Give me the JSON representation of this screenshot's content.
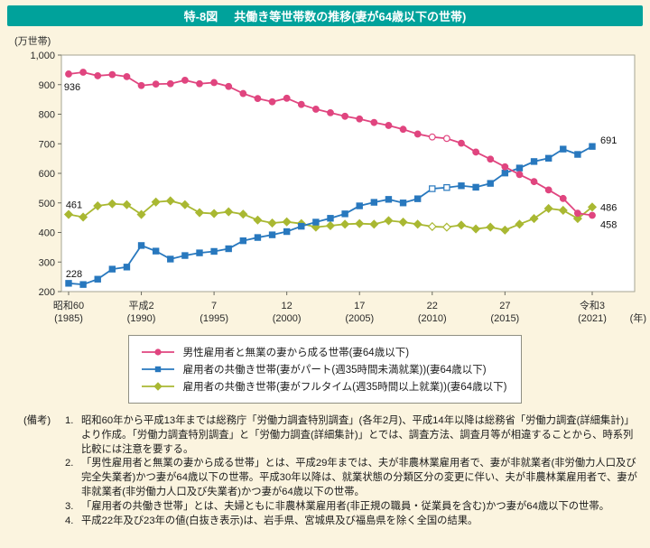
{
  "colors": {
    "accent_teal": "#00a29b",
    "page_background": "#fbf4df",
    "series_pink": "#e0457f",
    "series_blue": "#2878be",
    "series_green": "#a9b832"
  },
  "header": {
    "figure_number": "特-8図",
    "title": "共働き等世帯数の推移(妻が64歳以下の世帯)"
  },
  "chart_data": {
    "type": "line",
    "y_unit_label": "(万世帯)",
    "x_unit_label": "(年)",
    "ylim": [
      200,
      1000
    ],
    "grid": false,
    "legend_position": "bottom-box",
    "y_ticks": [
      {
        "v": 1000,
        "label": "1,000"
      },
      {
        "v": 900,
        "label": "900"
      },
      {
        "v": 800,
        "label": "800"
      },
      {
        "v": 700,
        "label": "700"
      },
      {
        "v": 600,
        "label": "600"
      },
      {
        "v": 500,
        "label": "500"
      },
      {
        "v": 400,
        "label": "400"
      },
      {
        "v": 300,
        "label": "300"
      },
      {
        "v": 200,
        "label": "200"
      }
    ],
    "x_ticks": [
      {
        "year": 1985,
        "era": "昭和60",
        "western": "(1985)"
      },
      {
        "year": 1990,
        "era": "平成2",
        "western": "(1990)"
      },
      {
        "year": 1995,
        "era": "7",
        "western": "(1995)"
      },
      {
        "year": 2000,
        "era": "12",
        "western": "(2000)"
      },
      {
        "year": 2005,
        "era": "17",
        "western": "(2005)"
      },
      {
        "year": 2010,
        "era": "22",
        "western": "(2010)"
      },
      {
        "year": 2015,
        "era": "27",
        "western": "(2015)"
      },
      {
        "year": 2021,
        "era": "令和3",
        "western": "(2021)"
      }
    ],
    "x_years": [
      1985,
      1986,
      1987,
      1988,
      1989,
      1990,
      1991,
      1992,
      1993,
      1994,
      1995,
      1996,
      1997,
      1998,
      1999,
      2000,
      2001,
      2002,
      2003,
      2004,
      2005,
      2006,
      2007,
      2008,
      2009,
      2010,
      2011,
      2012,
      2013,
      2014,
      2015,
      2016,
      2017,
      2018,
      2019,
      2020,
      2021
    ],
    "open_marker_years": [
      2010,
      2011
    ],
    "series": [
      {
        "name": "男性雇用者と無業の妻から成る世帯(妻64歳以下)",
        "marker": "circle",
        "color": "#e0457f",
        "values": [
          936,
          942,
          930,
          934,
          927,
          897,
          902,
          903,
          915,
          903,
          907,
          894,
          870,
          853,
          842,
          854,
          833,
          817,
          805,
          793,
          784,
          772,
          762,
          749,
          733,
          723,
          718,
          702,
          672,
          648,
          622,
          596,
          572,
          544,
          515,
          465,
          458
        ]
      },
      {
        "name": "雇用者の共働き世帯(妻がパート(週35時間未満就業))(妻64歳以下)",
        "marker": "square",
        "color": "#2878be",
        "values": [
          228,
          224,
          242,
          276,
          283,
          356,
          337,
          310,
          322,
          331,
          336,
          345,
          372,
          383,
          392,
          403,
          421,
          435,
          448,
          463,
          490,
          502,
          512,
          500,
          514,
          548,
          552,
          558,
          553,
          566,
          601,
          618,
          640,
          651,
          682,
          664,
          691
        ]
      },
      {
        "name": "雇用者の共働き世帯(妻がフルタイム(週35時間以上就業))(妻64歳以下)",
        "marker": "diamond",
        "color": "#a9b832",
        "values": [
          461,
          452,
          490,
          497,
          494,
          461,
          503,
          507,
          494,
          467,
          464,
          470,
          462,
          442,
          432,
          436,
          430,
          418,
          423,
          428,
          430,
          428,
          440,
          435,
          428,
          420,
          418,
          425,
          412,
          418,
          408,
          428,
          447,
          481,
          475,
          447,
          486
        ]
      }
    ],
    "annotations": [
      {
        "label": "936",
        "year": 1985,
        "value": 936,
        "pos": "below"
      },
      {
        "label": "228",
        "year": 1985,
        "value": 228,
        "pos": "above"
      },
      {
        "label": "461",
        "year": 1985,
        "value": 461,
        "pos": "above"
      },
      {
        "label": "691",
        "year": 2021,
        "value": 691,
        "pos": "right-above"
      },
      {
        "label": "486",
        "year": 2021,
        "value": 486,
        "pos": "right"
      },
      {
        "label": "458",
        "year": 2021,
        "value": 458,
        "pos": "right-below"
      }
    ]
  },
  "notes": {
    "label": "(備考)",
    "items": [
      {
        "num": "1.",
        "text": "昭和60年から平成13年までは総務庁「労働力調査特別調査」(各年2月)、平成14年以降は総務省「労働力調査(詳細集計)」より作成。「労働力調査特別調査」と「労働力調査(詳細集計)」とでは、調査方法、調査月等が相違することから、時系列比較には注意を要する。"
      },
      {
        "num": "2.",
        "text": "「男性雇用者と無業の妻から成る世帯」とは、平成29年までは、夫が非農林業雇用者で、妻が非就業者(非労働力人口及び完全失業者)かつ妻が64歳以下の世帯。平成30年以降は、就業状態の分類区分の変更に伴い、夫が非農林業雇用者で、妻が非就業者(非労働力人口及び失業者)かつ妻が64歳以下の世帯。"
      },
      {
        "num": "3.",
        "text": "「雇用者の共働き世帯」とは、夫婦ともに非農林業雇用者(非正規の職員・従業員を含む)かつ妻が64歳以下の世帯。"
      },
      {
        "num": "4.",
        "text": "平成22年及び23年の値(白抜き表示)は、岩手県、宮城県及び福島県を除く全国の結果。"
      }
    ]
  }
}
